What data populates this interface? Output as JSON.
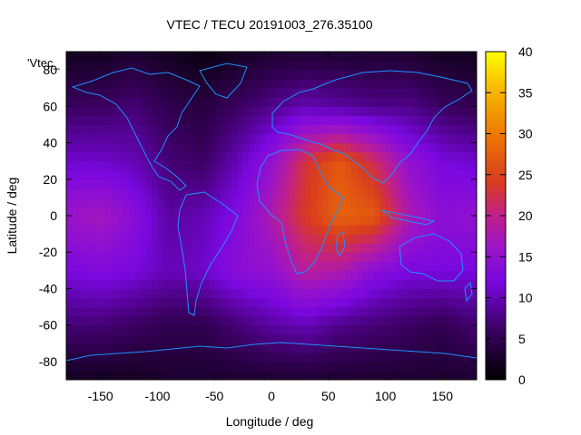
{
  "chart_data": {
    "type": "heatmap",
    "title": "VTEC / TECU 20191003_276.35100",
    "key_label": "'Vtec_",
    "xlabel": "Longitude / deg",
    "ylabel": "Latitude / deg",
    "xlim": [
      -180,
      180
    ],
    "ylim": [
      -90,
      90
    ],
    "zlim": [
      0,
      40
    ],
    "x_ticks": [
      -150,
      -100,
      -50,
      0,
      50,
      100,
      150
    ],
    "y_ticks": [
      -80,
      -60,
      -40,
      -20,
      0,
      20,
      40,
      60,
      80
    ],
    "colorbar_ticks": [
      0,
      5,
      10,
      15,
      20,
      25,
      30,
      35,
      40
    ],
    "grid": false,
    "colormap": "gnuplot-heat",
    "colorbar_placement": "right",
    "overlay": "coastlines",
    "coastline_color": "#1e90ff",
    "grid_x": [
      -180,
      -150,
      -120,
      -90,
      -60,
      -30,
      0,
      30,
      60,
      90,
      120,
      150,
      180
    ],
    "grid_y": [
      -90,
      -60,
      -30,
      0,
      30,
      60,
      90
    ],
    "values": [
      [
        2,
        2,
        2,
        3,
        3,
        3,
        3,
        3,
        3,
        3,
        3,
        3,
        3
      ],
      [
        7,
        7,
        6,
        5,
        5,
        7,
        9,
        10,
        8,
        7,
        6,
        5,
        7
      ],
      [
        12,
        13,
        12,
        10,
        11,
        14,
        15,
        19,
        18,
        14,
        12,
        12,
        12
      ],
      [
        16,
        17,
        14,
        9,
        10,
        13,
        18,
        24,
        28,
        27,
        18,
        14,
        15
      ],
      [
        11,
        11,
        10,
        7,
        6,
        10,
        15,
        23,
        27,
        22,
        15,
        12,
        11
      ],
      [
        6,
        6,
        7,
        5,
        4,
        6,
        8,
        10,
        9,
        8,
        8,
        6,
        5
      ],
      [
        2,
        2,
        3,
        2,
        1,
        2,
        3,
        3,
        3,
        3,
        3,
        2,
        2
      ]
    ]
  }
}
